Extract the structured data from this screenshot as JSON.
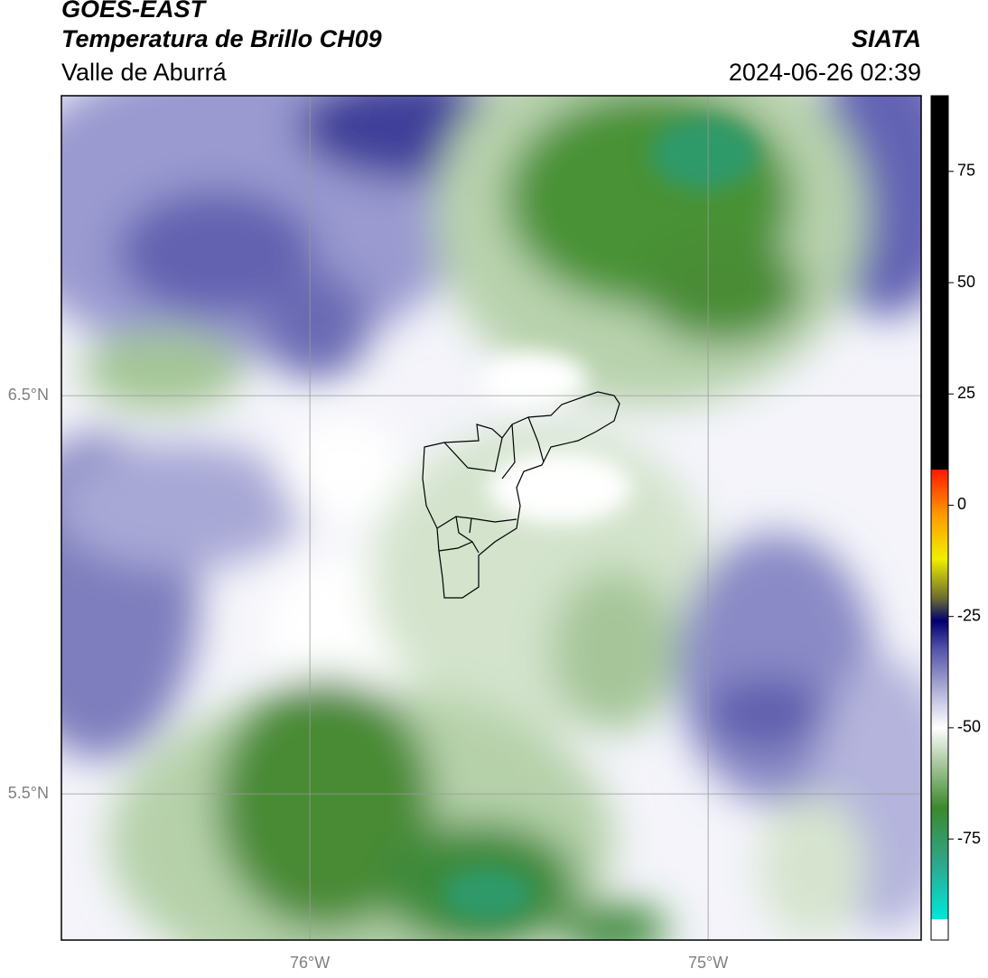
{
  "header": {
    "line1": "GOES-EAST",
    "line2": "Temperatura de Brillo CH09",
    "line3": "Valle de Aburrá",
    "right_top": "SIATA",
    "right_bottom": "2024-06-26 02:39"
  },
  "map": {
    "lon_range": [
      -76.624,
      -74.465
    ],
    "lat_range": [
      5.133,
      7.253
    ],
    "lon_ticks": [
      {
        "value": -76,
        "label": "76°W"
      },
      {
        "value": -75,
        "label": "75°W"
      }
    ],
    "lat_ticks": [
      {
        "value": 6.5,
        "label": "6.5°N"
      },
      {
        "value": 5.5,
        "label": "5.5°N"
      }
    ]
  },
  "colorbar": {
    "range": [
      -97.7,
      92
    ],
    "ticks": [
      75,
      50,
      25,
      0,
      -25,
      -50,
      -75
    ],
    "stops": [
      {
        "value": -97.7,
        "color": "#ffffff"
      },
      {
        "value": -93,
        "color": "#ffffff"
      },
      {
        "value": -93,
        "color": "#00e8da"
      },
      {
        "value": -80,
        "color": "#2fa58a"
      },
      {
        "value": -68,
        "color": "#3b8a2c"
      },
      {
        "value": -58,
        "color": "#a9c89e"
      },
      {
        "value": -50,
        "color": "#ffffff"
      },
      {
        "value": -44,
        "color": "#c8c8e4"
      },
      {
        "value": -32,
        "color": "#5050a8"
      },
      {
        "value": -26,
        "color": "#000070"
      },
      {
        "value": -21,
        "color": "#6a6a30"
      },
      {
        "value": -12,
        "color": "#f0f000"
      },
      {
        "value": -2,
        "color": "#ff9800"
      },
      {
        "value": 8,
        "color": "#ff1a00"
      },
      {
        "value": 8,
        "color": "#000000"
      },
      {
        "value": 92,
        "color": "#000000"
      }
    ]
  }
}
